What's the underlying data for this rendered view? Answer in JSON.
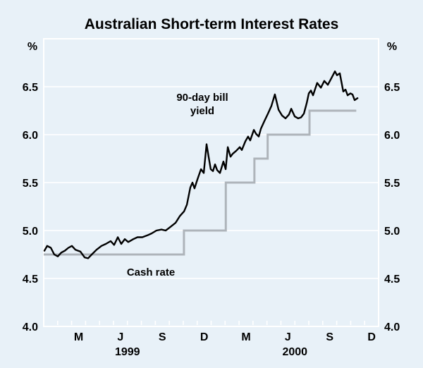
{
  "chart_data": {
    "type": "line",
    "title": "Australian Short-term Interest Rates",
    "y_unit": "%",
    "ylim": [
      4.0,
      7.0
    ],
    "yticks": [
      4.0,
      4.5,
      5.0,
      5.5,
      6.0,
      6.5
    ],
    "xlim_months": [
      0,
      24
    ],
    "xtick_interval_months": 1,
    "xticks": [
      {
        "label": "M",
        "month": 2.5
      },
      {
        "label": "J",
        "month": 5.5
      },
      {
        "label": "S",
        "month": 8.5
      },
      {
        "label": "D",
        "month": 11.5
      },
      {
        "label": "M",
        "month": 14.5
      },
      {
        "label": "J",
        "month": 17.5
      },
      {
        "label": "S",
        "month": 20.5
      },
      {
        "label": "D",
        "month": 23.5
      }
    ],
    "year_labels": [
      {
        "label": "1999",
        "month": 6
      },
      {
        "label": "2000",
        "month": 18
      }
    ],
    "grid_color": "#ffffff",
    "background_color": "#e8f1f8",
    "series": [
      {
        "name": "90-day bill yield",
        "label_lines": [
          "90-day bill",
          "yield"
        ],
        "type": "line",
        "color": "#000000",
        "width": 2.4,
        "points": [
          [
            0.05,
            4.79
          ],
          [
            0.25,
            4.84
          ],
          [
            0.51,
            4.82
          ],
          [
            0.76,
            4.75
          ],
          [
            1.01,
            4.73
          ],
          [
            1.26,
            4.77
          ],
          [
            1.52,
            4.79
          ],
          [
            1.77,
            4.82
          ],
          [
            2.02,
            4.84
          ],
          [
            2.27,
            4.8
          ],
          [
            2.63,
            4.78
          ],
          [
            2.93,
            4.72
          ],
          [
            3.18,
            4.71
          ],
          [
            3.44,
            4.75
          ],
          [
            3.79,
            4.8
          ],
          [
            4.14,
            4.84
          ],
          [
            4.45,
            4.86
          ],
          [
            4.8,
            4.89
          ],
          [
            5.05,
            4.85
          ],
          [
            5.31,
            4.93
          ],
          [
            5.56,
            4.86
          ],
          [
            5.81,
            4.91
          ],
          [
            6.06,
            4.88
          ],
          [
            6.42,
            4.91
          ],
          [
            6.72,
            4.93
          ],
          [
            7.07,
            4.93
          ],
          [
            7.43,
            4.95
          ],
          [
            7.73,
            4.97
          ],
          [
            8.08,
            5.0
          ],
          [
            8.44,
            5.01
          ],
          [
            8.74,
            5.0
          ],
          [
            9.1,
            5.04
          ],
          [
            9.45,
            5.08
          ],
          [
            9.75,
            5.15
          ],
          [
            10.06,
            5.2
          ],
          [
            10.26,
            5.27
          ],
          [
            10.51,
            5.45
          ],
          [
            10.66,
            5.5
          ],
          [
            10.81,
            5.44
          ],
          [
            11.01,
            5.53
          ],
          [
            11.27,
            5.64
          ],
          [
            11.47,
            5.6
          ],
          [
            11.67,
            5.9
          ],
          [
            11.82,
            5.77
          ],
          [
            11.97,
            5.64
          ],
          [
            12.13,
            5.62
          ],
          [
            12.28,
            5.69
          ],
          [
            12.43,
            5.63
          ],
          [
            12.63,
            5.6
          ],
          [
            12.88,
            5.72
          ],
          [
            13.04,
            5.64
          ],
          [
            13.19,
            5.87
          ],
          [
            13.39,
            5.77
          ],
          [
            13.54,
            5.8
          ],
          [
            13.79,
            5.83
          ],
          [
            14.05,
            5.87
          ],
          [
            14.2,
            5.84
          ],
          [
            14.45,
            5.93
          ],
          [
            14.65,
            5.98
          ],
          [
            14.8,
            5.94
          ],
          [
            15.06,
            6.05
          ],
          [
            15.21,
            6.01
          ],
          [
            15.41,
            5.98
          ],
          [
            15.56,
            6.06
          ],
          [
            15.81,
            6.14
          ],
          [
            16.07,
            6.22
          ],
          [
            16.32,
            6.3
          ],
          [
            16.57,
            6.42
          ],
          [
            16.83,
            6.26
          ],
          [
            17.08,
            6.2
          ],
          [
            17.33,
            6.17
          ],
          [
            17.58,
            6.21
          ],
          [
            17.74,
            6.27
          ],
          [
            17.99,
            6.19
          ],
          [
            18.24,
            6.17
          ],
          [
            18.44,
            6.18
          ],
          [
            18.65,
            6.22
          ],
          [
            18.85,
            6.33
          ],
          [
            19.0,
            6.43
          ],
          [
            19.15,
            6.46
          ],
          [
            19.3,
            6.41
          ],
          [
            19.6,
            6.54
          ],
          [
            19.86,
            6.49
          ],
          [
            20.11,
            6.56
          ],
          [
            20.36,
            6.52
          ],
          [
            20.62,
            6.59
          ],
          [
            20.87,
            6.66
          ],
          [
            21.02,
            6.62
          ],
          [
            21.22,
            6.64
          ],
          [
            21.47,
            6.45
          ],
          [
            21.63,
            6.47
          ],
          [
            21.78,
            6.41
          ],
          [
            21.98,
            6.43
          ],
          [
            22.13,
            6.42
          ],
          [
            22.28,
            6.36
          ],
          [
            22.49,
            6.38
          ]
        ]
      },
      {
        "name": "Cash rate",
        "label": "Cash rate",
        "type": "step",
        "color": "#aeb4ba",
        "width": 3,
        "changes": [
          [
            0.0,
            4.75
          ],
          [
            10.05,
            5.0
          ],
          [
            13.05,
            5.5
          ],
          [
            15.1,
            5.75
          ],
          [
            16.05,
            6.0
          ],
          [
            19.05,
            6.25
          ]
        ],
        "end_month": 22.4
      }
    ]
  }
}
